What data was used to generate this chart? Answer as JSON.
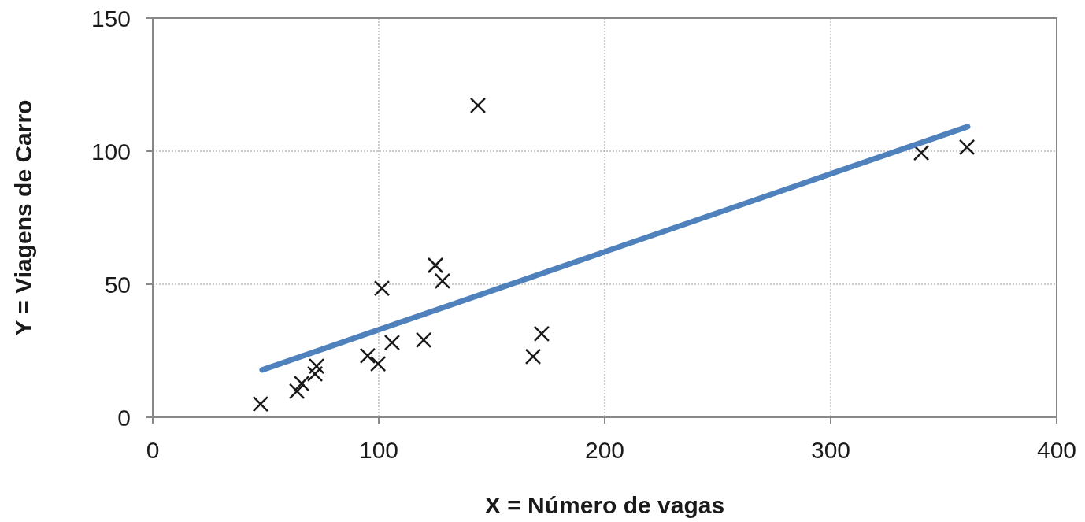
{
  "chart_data": {
    "type": "scatter",
    "xlabel": "X = Número de vagas",
    "ylabel": "Y = Viagens de Carro",
    "xlim": [
      0,
      400
    ],
    "xticks": [
      0,
      100,
      200,
      300,
      400
    ],
    "ylim": [
      0,
      150
    ],
    "yticks": [
      0,
      50,
      100,
      150
    ],
    "grid": true,
    "marker": "cross",
    "series": [
      {
        "color": "#1a1a1a",
        "x": [
          47.7,
          63.8,
          65.9,
          71.8,
          72.5,
          95.1,
          99.7,
          101.4,
          105.9,
          119.9,
          125.1,
          128.2,
          143.9,
          168.3,
          172.1,
          340.1,
          360.3
        ],
        "values": [
          5,
          9.8,
          12.7,
          16.3,
          19.2,
          23.1,
          20.1,
          48.5,
          28.1,
          29,
          57.1,
          51.2,
          117.2,
          22.8,
          31.4,
          99.4,
          101.5
        ]
      },
      {
        "type": "line",
        "color": "#4f81bd",
        "x": [
          48.4,
          360.6
        ],
        "values": [
          17.8,
          109.2
        ],
        "marker": "none",
        "line_style": "solid"
      }
    ]
  }
}
